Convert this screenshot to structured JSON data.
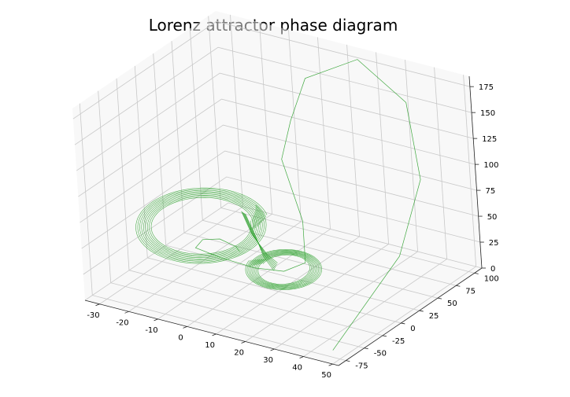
{
  "chart_data": {
    "type": "line",
    "projection": "3d",
    "title": "Lorenz attractor phase diagram",
    "xlabel": "",
    "ylabel": "",
    "zlabel": "",
    "grid": true,
    "x_ticks": [
      -30,
      -20,
      -10,
      0,
      10,
      20,
      30,
      40,
      50
    ],
    "y_ticks": [
      -75,
      -50,
      -25,
      0,
      25,
      50,
      75,
      100
    ],
    "z_ticks": [
      0,
      25,
      50,
      75,
      100,
      125,
      150,
      175
    ],
    "xlim": [
      -35,
      52
    ],
    "ylim": [
      -85,
      110
    ],
    "zlim": [
      0,
      185
    ],
    "series": [
      {
        "color": "#2ca02c",
        "x": [
          45,
          45,
          42,
          32,
          16,
          0,
          -2,
          -2,
          12,
          20,
          15,
          5,
          -8,
          -18,
          -18,
          -12,
          -6,
          -4
        ],
        "y": [
          -65,
          30,
          75,
          100,
          100,
          90,
          75,
          60,
          30,
          0,
          -10,
          -10,
          -5,
          0,
          10,
          10,
          8,
          5
        ],
        "z": [
          0,
          45,
          95,
          150,
          180,
          155,
          120,
          90,
          55,
          35,
          28,
          24,
          22,
          22,
          25,
          30,
          28,
          26
        ]
      }
    ]
  }
}
